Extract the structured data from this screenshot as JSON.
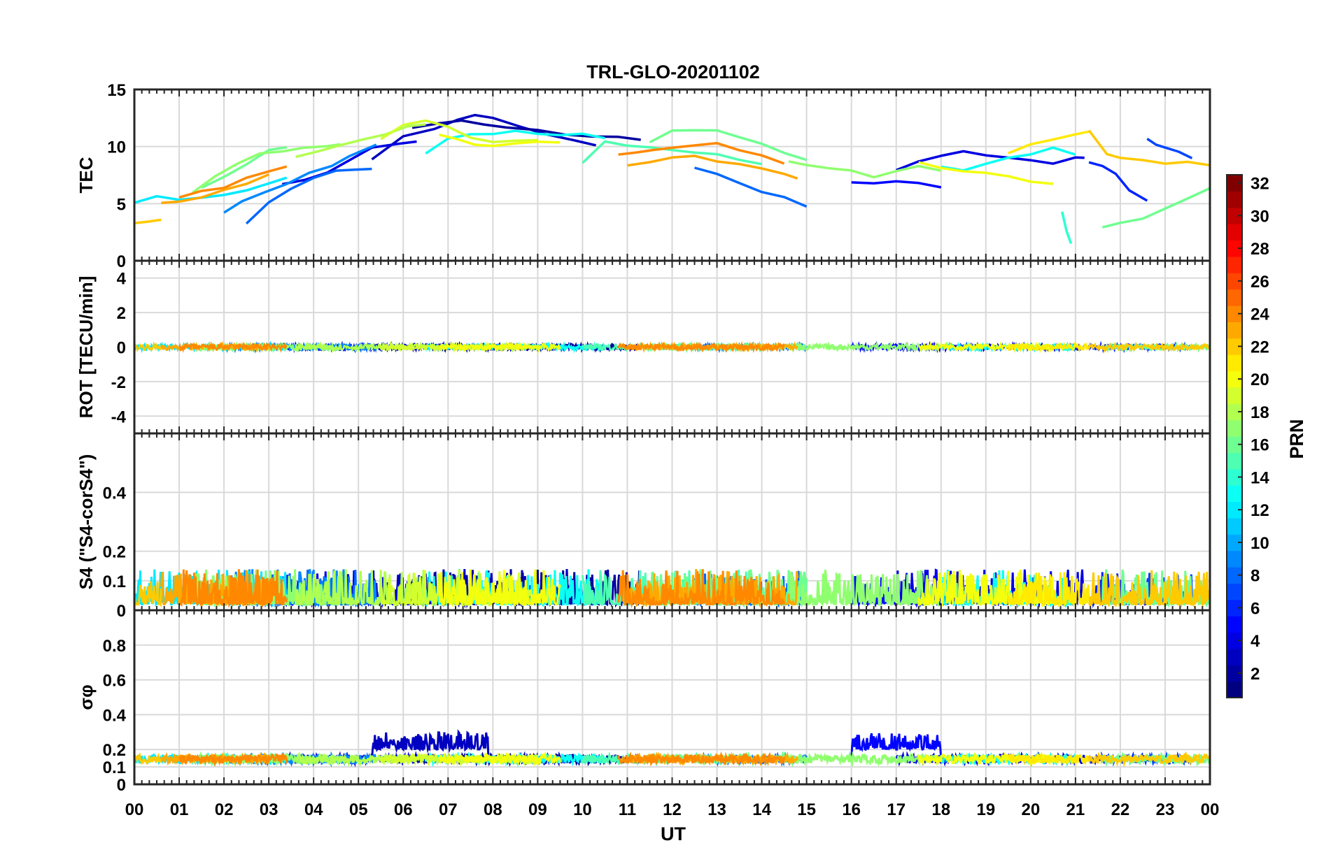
{
  "chart_data": {
    "title": "TRL-GLO-20201102",
    "type": "line",
    "xlabel": "UT",
    "x_ticks": [
      "00",
      "01",
      "02",
      "03",
      "04",
      "05",
      "06",
      "07",
      "08",
      "09",
      "10",
      "11",
      "12",
      "13",
      "14",
      "15",
      "16",
      "17",
      "18",
      "19",
      "20",
      "21",
      "22",
      "23",
      "00"
    ],
    "xlim": [
      0,
      24
    ],
    "colorbar": {
      "label": "PRN",
      "range": [
        1,
        32
      ],
      "ticks": [
        "2",
        "4",
        "6",
        "8",
        "10",
        "12",
        "14",
        "16",
        "18",
        "20",
        "22",
        "24",
        "26",
        "28",
        "30",
        "32"
      ]
    },
    "panels": [
      {
        "name": "tec",
        "ylabel": "TEC",
        "ylim": [
          0,
          15
        ],
        "y_ticks": [
          "0",
          "5",
          "10",
          "15"
        ],
        "series": [
          {
            "prn": 3,
            "x": [
              5.3,
              6.0,
              6.7,
              7.2,
              7.6,
              8.0,
              8.6,
              9.2,
              9.8,
              10.3
            ],
            "y": [
              9.0,
              10.8,
              11.6,
              12.4,
              12.7,
              12.5,
              11.8,
              11.0,
              10.5,
              10.1
            ]
          },
          {
            "prn": 2,
            "x": [
              6.2,
              6.8,
              7.3,
              7.8,
              8.3,
              9.0,
              9.6,
              10.2,
              10.8,
              11.3
            ],
            "y": [
              11.6,
              12.0,
              12.2,
              12.0,
              11.7,
              11.4,
              11.0,
              11.0,
              10.8,
              10.6
            ]
          },
          {
            "prn": 4,
            "x": [
              3.3,
              3.8,
              4.3,
              4.8,
              5.3,
              5.9,
              6.3
            ],
            "y": [
              6.6,
              7.0,
              7.8,
              8.8,
              9.8,
              10.2,
              10.4
            ]
          },
          {
            "prn": 6,
            "x": [
              21.3,
              21.6,
              21.9,
              22.2,
              22.6
            ],
            "y": [
              8.6,
              8.2,
              7.5,
              6.2,
              5.3
            ]
          },
          {
            "prn": 7,
            "x": [
              22.6,
              22.8,
              23.0,
              23.3,
              23.6
            ],
            "y": [
              10.6,
              10.2,
              10.0,
              9.6,
              9.0
            ]
          },
          {
            "prn": 8,
            "x": [
              2.5,
              3.0,
              3.5,
              4.0,
              4.5,
              5.0,
              5.3
            ],
            "y": [
              3.3,
              5.0,
              6.3,
              7.2,
              7.8,
              8.1,
              8.1
            ]
          },
          {
            "prn": 9,
            "x": [
              2.0,
              2.4,
              2.9,
              3.4,
              3.9,
              4.4,
              4.8,
              5.4
            ],
            "y": [
              4.2,
              5.2,
              6.0,
              6.8,
              7.6,
              8.4,
              9.2,
              10.2
            ]
          },
          {
            "prn": 8,
            "x": [
              12.5,
              13.0,
              13.5,
              14.0,
              14.5,
              15.0
            ],
            "y": [
              8.1,
              7.5,
              6.8,
              6.1,
              5.6,
              4.8
            ]
          },
          {
            "prn": 5,
            "x": [
              16.0,
              16.5,
              17.0,
              17.5,
              18.0
            ],
            "y": [
              6.9,
              6.8,
              7.0,
              6.8,
              6.4
            ]
          },
          {
            "prn": 4,
            "x": [
              17.0,
              17.5,
              18.0,
              18.5,
              19.0,
              19.5,
              20.0,
              20.5,
              21.0,
              21.2
            ],
            "y": [
              8.0,
              8.6,
              9.2,
              9.5,
              9.2,
              9.0,
              8.8,
              8.5,
              9.0,
              8.9
            ]
          },
          {
            "prn": 12,
            "x": [
              0.0,
              0.5,
              1.0,
              1.5,
              2.0,
              2.5,
              3.0,
              3.4
            ],
            "y": [
              5.1,
              5.6,
              5.4,
              5.5,
              5.8,
              6.2,
              6.8,
              7.2
            ]
          },
          {
            "prn": 13,
            "x": [
              6.5,
              7.0,
              7.5,
              8.0,
              8.5,
              9.0,
              9.5,
              10.0,
              10.5
            ],
            "y": [
              9.3,
              10.8,
              11.0,
              11.2,
              11.4,
              11.2,
              11.1,
              11.0,
              10.8
            ]
          },
          {
            "prn": 13,
            "x": [
              18.0,
              18.5,
              19.0,
              19.5,
              20.0,
              20.5,
              21.0
            ],
            "y": [
              8.2,
              8.0,
              8.5,
              9.0,
              9.4,
              9.8,
              9.2
            ]
          },
          {
            "prn": 14,
            "x": [
              20.7,
              20.8,
              20.9
            ],
            "y": [
              4.2,
              2.5,
              1.4
            ]
          },
          {
            "prn": 15,
            "x": [
              10.0,
              10.5,
              11.0,
              11.5,
              12.0,
              12.5,
              13.0,
              13.5,
              14.0
            ],
            "y": [
              8.5,
              10.5,
              10.2,
              10.0,
              9.8,
              9.6,
              9.3,
              8.9,
              8.4
            ]
          },
          {
            "prn": 16,
            "x": [
              1.5,
              2.0,
              2.5,
              3.0,
              3.4
            ],
            "y": [
              6.4,
              7.3,
              8.5,
              9.6,
              10.0
            ]
          },
          {
            "prn": 17,
            "x": [
              1.3,
              1.8,
              2.3,
              2.8,
              3.3,
              3.8,
              4.3,
              4.6
            ],
            "y": [
              6.0,
              7.3,
              8.6,
              9.4,
              9.7,
              9.8,
              10.0,
              10.1
            ]
          },
          {
            "prn": 16,
            "x": [
              11.5,
              12.0,
              12.5,
              13.0,
              13.5,
              14.0,
              14.5,
              15.0
            ],
            "y": [
              10.5,
              11.3,
              11.5,
              11.3,
              10.8,
              10.2,
              9.5,
              8.9
            ]
          },
          {
            "prn": 16,
            "x": [
              21.6,
              22.0,
              22.5,
              23.0,
              23.5,
              24.0
            ],
            "y": [
              3.0,
              3.3,
              3.8,
              4.5,
              5.4,
              6.3
            ]
          },
          {
            "prn": 17,
            "x": [
              14.6,
              15.0,
              15.5,
              16.0,
              16.5,
              17.0,
              17.5,
              18.0
            ],
            "y": [
              8.7,
              8.5,
              8.2,
              7.8,
              7.4,
              7.8,
              8.2,
              8.0
            ]
          },
          {
            "prn": 18,
            "x": [
              3.6,
              4.1,
              4.6,
              5.1,
              5.6,
              6.1,
              6.5
            ],
            "y": [
              9.0,
              9.5,
              10.0,
              10.5,
              11.0,
              11.8,
              12.0
            ]
          },
          {
            "prn": 19,
            "x": [
              5.5,
              6.0,
              6.5,
              7.0,
              7.5,
              8.0,
              8.5,
              9.0
            ],
            "y": [
              10.6,
              11.8,
              12.3,
              11.8,
              10.8,
              10.3,
              10.5,
              10.6
            ]
          },
          {
            "prn": 20,
            "x": [
              6.8,
              7.2,
              7.6,
              8.0,
              8.5,
              9.0,
              9.5
            ],
            "y": [
              11.0,
              10.6,
              10.2,
              10.0,
              10.3,
              10.5,
              10.4
            ]
          },
          {
            "prn": 20,
            "x": [
              17.5,
              18.0,
              18.5,
              19.0,
              19.5,
              20.0,
              20.5
            ],
            "y": [
              8.5,
              8.0,
              7.8,
              7.6,
              7.3,
              7.0,
              6.7
            ]
          },
          {
            "prn": 21,
            "x": [
              19.5,
              20.0,
              20.5,
              21.0,
              21.3
            ],
            "y": [
              9.5,
              10.2,
              10.6,
              11.0,
              11.2
            ]
          },
          {
            "prn": 22,
            "x": [
              0.0,
              0.3,
              0.6
            ],
            "y": [
              3.3,
              3.5,
              3.6
            ]
          },
          {
            "prn": 22,
            "x": [
              21.3,
              21.7,
              22.0,
              22.5,
              23.0,
              23.5,
              24.0
            ],
            "y": [
              11.5,
              9.3,
              9.0,
              8.8,
              8.5,
              8.6,
              8.4
            ]
          },
          {
            "prn": 23,
            "x": [
              0.6,
              1.0,
              1.5,
              2.0,
              2.5,
              3.0
            ],
            "y": [
              5.0,
              5.3,
              5.6,
              6.2,
              6.8,
              7.5
            ]
          },
          {
            "prn": 23,
            "x": [
              11.0,
              11.5,
              12.0,
              12.5,
              13.0,
              13.5,
              14.0,
              14.5,
              14.8
            ],
            "y": [
              8.4,
              8.7,
              9.0,
              9.2,
              8.8,
              8.4,
              8.0,
              7.5,
              7.1
            ]
          },
          {
            "prn": 24,
            "x": [
              1.0,
              1.5,
              2.0,
              2.5,
              3.0,
              3.4
            ],
            "y": [
              5.5,
              6.0,
              6.5,
              7.2,
              7.8,
              8.2
            ]
          },
          {
            "prn": 24,
            "x": [
              10.8,
              11.2,
              11.6,
              12.0,
              12.5,
              13.0,
              13.5,
              14.0,
              14.5
            ],
            "y": [
              9.2,
              9.6,
              9.8,
              10.0,
              10.2,
              10.4,
              9.8,
              9.2,
              8.4
            ]
          }
        ]
      },
      {
        "name": "rot",
        "ylabel": "ROT [TECU/min]",
        "ylim": [
          -5,
          5
        ],
        "y_ticks": [
          "-4",
          "-2",
          "0",
          "2",
          "4"
        ]
      },
      {
        "name": "s4",
        "ylabel": "S4 (\"S4-corS4\")",
        "ylim": [
          0,
          0.6
        ],
        "y_ticks": [
          "0",
          "0.1",
          "0.2",
          "0.4"
        ]
      },
      {
        "name": "sigma",
        "ylabel": "σφ",
        "ylim": [
          0,
          1
        ],
        "y_ticks": [
          "0",
          "0.1",
          "0.2",
          "0.4",
          "0.6",
          "0.8"
        ]
      }
    ]
  }
}
